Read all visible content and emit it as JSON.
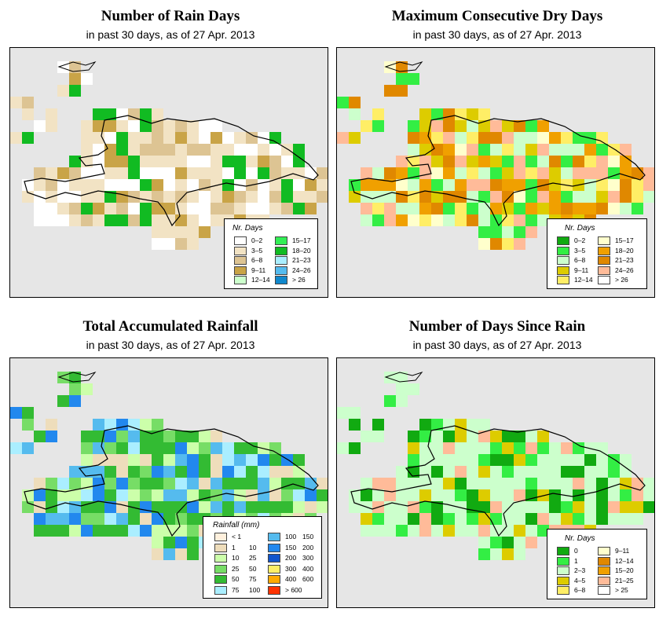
{
  "colors": {
    "map_background": "#e6e6e6",
    "coast_line": "#000000"
  },
  "panels": [
    {
      "id": "rain_days",
      "title": "Number of Rain Days",
      "subtitle": "in past 30 days, as of  27 Apr. 2013",
      "legend": {
        "title": "Nr. Days",
        "columns": 2,
        "items": [
          {
            "label": "0–2",
            "color": "#ffffff"
          },
          {
            "label": "3–5",
            "color": "#f2e3c4"
          },
          {
            "label": "6–8",
            "color": "#ddc493"
          },
          {
            "label": "9–11",
            "color": "#c9a447"
          },
          {
            "label": "12–14",
            "color": "#ccffcc"
          },
          {
            "label": "15–17",
            "color": "#33ee55"
          },
          {
            "label": "18–20",
            "color": "#11bb22"
          },
          {
            "label": "21–23",
            "color": "#aaeeff"
          },
          {
            "label": "24–26",
            "color": "#55bbee"
          },
          {
            "label": "> 26",
            "color": "#1188cc"
          }
        ]
      }
    },
    {
      "id": "max_dry_days",
      "title": "Maximum Consecutive Dry Days",
      "subtitle": "in past 30 days, as of  27 Apr. 2013",
      "legend": {
        "title": "Nr. Days",
        "columns": 2,
        "items": [
          {
            "label": "0–2",
            "color": "#11aa11"
          },
          {
            "label": "3–5",
            "color": "#33ee44"
          },
          {
            "label": "6–8",
            "color": "#ccffcc"
          },
          {
            "label": "9–11",
            "color": "#ddcc00"
          },
          {
            "label": "12–14",
            "color": "#ffee66"
          },
          {
            "label": "15–17",
            "color": "#ffffcc"
          },
          {
            "label": "18–20",
            "color": "#f0a000"
          },
          {
            "label": "21–23",
            "color": "#e08800"
          },
          {
            "label": "24–26",
            "color": "#ffbb99"
          },
          {
            "label": "> 26",
            "color": "#ffffff"
          }
        ]
      }
    },
    {
      "id": "total_rainfall",
      "title": "Total Accumulated Rainfall",
      "subtitle": "in past 30 days, as of  27 Apr. 2013",
      "legend": {
        "title": "Rainfall (mm)",
        "columns": 2,
        "items": [
          {
            "label": "< 1",
            "label_b": "",
            "color": "#fff0dd"
          },
          {
            "label": "1",
            "label_b": "10",
            "color": "#eeddbb"
          },
          {
            "label": "10",
            "label_b": "25",
            "color": "#ccffaa"
          },
          {
            "label": "25",
            "label_b": "50",
            "color": "#77dd66"
          },
          {
            "label": "50",
            "label_b": "75",
            "color": "#33bb33"
          },
          {
            "label": "75",
            "label_b": "100",
            "color": "#aaeeff"
          },
          {
            "label": "100",
            "label_b": "150",
            "color": "#55bbee"
          },
          {
            "label": "150",
            "label_b": "200",
            "color": "#2288ee"
          },
          {
            "label": "200",
            "label_b": "300",
            "color": "#1155cc"
          },
          {
            "label": "300",
            "label_b": "400",
            "color": "#ffee66"
          },
          {
            "label": "400",
            "label_b": "600",
            "color": "#ffaa00"
          },
          {
            "label": "> 600",
            "label_b": "",
            "color": "#ff3300"
          }
        ]
      }
    },
    {
      "id": "days_since_rain",
      "title": "Number of Days Since Rain",
      "subtitle": "in past 30 days, as of  27 Apr. 2013",
      "legend": {
        "title": "Nr. Days",
        "columns": 2,
        "items": [
          {
            "label": "0",
            "color": "#11aa11"
          },
          {
            "label": "1",
            "color": "#33ee44"
          },
          {
            "label": "2–3",
            "color": "#ccffcc"
          },
          {
            "label": "4–5",
            "color": "#ddcc00"
          },
          {
            "label": "6–8",
            "color": "#ffee66"
          },
          {
            "label": "9–11",
            "color": "#ffffcc"
          },
          {
            "label": "12–14",
            "color": "#e08800"
          },
          {
            "label": "15–20",
            "color": "#f0a000"
          },
          {
            "label": "21–25",
            "color": "#ffbb99"
          },
          {
            "label": "> 25",
            "color": "#ffffff"
          }
        ]
      }
    }
  ]
}
